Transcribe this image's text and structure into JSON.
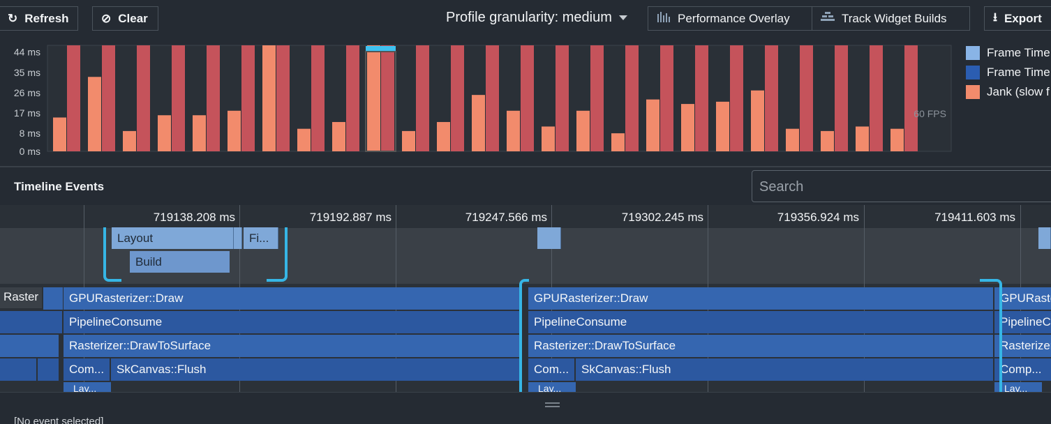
{
  "toolbar": {
    "refresh_label": "Refresh",
    "clear_label": "Clear",
    "granularity_label": "Profile granularity: medium",
    "performance_overlay_label": "Performance Overlay",
    "track_widget_builds_label": "Track Widget Builds",
    "export_label": "Export"
  },
  "chart_data": {
    "type": "bar",
    "title": "",
    "y_tick_labels": [
      "44 ms",
      "35 ms",
      "26 ms",
      "17 ms",
      "8 ms",
      "0 ms"
    ],
    "y_ticks": [
      44,
      35,
      26,
      17,
      8,
      0
    ],
    "ylim": [
      0,
      47
    ],
    "target_label": "60 FPS",
    "target_value": 16.7,
    "legend": [
      "Frame Time (UI)",
      "Frame Time (Raster)",
      "Jank (slow frame)"
    ],
    "series": [
      {
        "name": "Frame Time (UI)",
        "values": [
          15,
          33,
          9,
          16,
          16,
          18,
          47,
          10,
          13,
          47,
          9,
          13,
          25,
          18,
          11,
          18,
          8,
          23,
          21,
          22,
          27,
          10,
          9,
          11,
          10
        ]
      },
      {
        "name": "Frame Time (Raster)",
        "values": [
          47,
          47,
          47,
          47,
          47,
          47,
          47,
          47,
          47,
          47,
          47,
          47,
          47,
          47,
          47,
          47,
          47,
          47,
          47,
          47,
          47,
          47,
          47,
          47,
          47
        ]
      }
    ],
    "selected_index": 9,
    "colors": {
      "ui": "#f28b6c",
      "raster": "#c5535b",
      "selected_bar": "#3ec1f0",
      "legend_ui": "#89b4e6",
      "legend_raster": "#2b5db1",
      "legend_jank": "#f28b6c"
    }
  },
  "legend": {
    "item1": "Frame Time",
    "item2": "Frame Time",
    "item3": "Jank (slow f"
  },
  "timeline": {
    "title": "Timeline Events",
    "search_placeholder": "Search",
    "ticks": [
      "719138.208 ms",
      "719192.887 ms",
      "719247.566 ms",
      "719302.245 ms",
      "719356.924 ms",
      "719411.603 ms"
    ],
    "raster_label": "Raster",
    "ui_events": {
      "layout": "Layout",
      "finish": "Fi...",
      "build": "Build"
    },
    "raster_events": {
      "gpu_draw": "GPURasterizer::Draw",
      "pipeline": "PipelineConsume",
      "draw_to_surface": "Rasterizer::DrawToSurface",
      "comp": "Com...",
      "comp_right": "Comp...",
      "flush": "SkCanvas::Flush",
      "lay": "Lay...",
      "gpu_draw_clip": "GPURaste",
      "pipeline_clip": "PipelineC",
      "rasterizer_clip": "Rasterizer",
      "lay_right": "Lay..."
    }
  },
  "footer": {
    "text": "[No event selected]"
  }
}
